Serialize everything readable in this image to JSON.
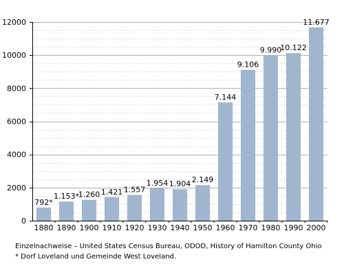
{
  "chart_data": {
    "type": "bar",
    "categories": [
      "1880",
      "1890",
      "1900",
      "1910",
      "1920",
      "1930",
      "1940",
      "1950",
      "1960",
      "1970",
      "1980",
      "1990",
      "2000"
    ],
    "values": [
      792,
      1153,
      1260,
      1421,
      1557,
      1954,
      1904,
      2149,
      7144,
      9106,
      9990,
      10122,
      11677
    ],
    "data_labels": [
      "792*",
      "1.153*",
      "1.260",
      "1.421",
      "1.557",
      "1.954",
      "1.904",
      "2.149",
      "7.144",
      "9.106",
      "9.990",
      "10.122",
      "11.677"
    ],
    "y_ticks": [
      0,
      2000,
      4000,
      6000,
      8000,
      10000,
      12000
    ],
    "ylim": [
      0,
      12000
    ],
    "grid": true,
    "bar_color": "#9fb6ce",
    "title": "",
    "xlabel": "",
    "ylabel": ""
  },
  "footnotes": {
    "source": "Einzelnachweise – United States Census Bureau, ODOD, History of Hamilton County Ohio",
    "note": "* Dorf Loveland und Gemeinde West Loveland."
  }
}
